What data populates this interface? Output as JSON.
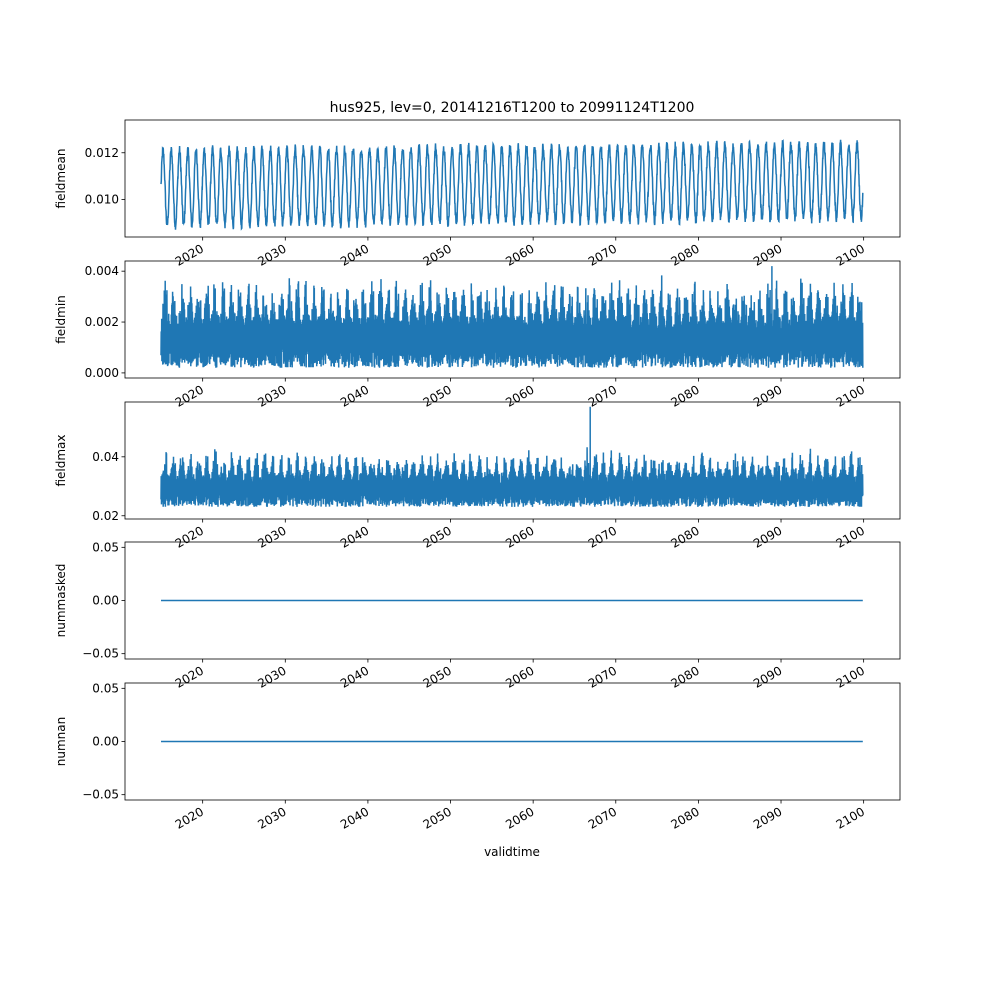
{
  "figure": {
    "title": "hus925, lev=0, 20141216T1200 to 20991124T1200",
    "xlabel": "validtime",
    "series_color": "#1f77b4"
  },
  "chart_data": [
    {
      "type": "line",
      "ylabel": "fieldmean",
      "xlim": [
        2010.6,
        2104.4
      ],
      "ylim": [
        0.0084,
        0.0134
      ],
      "yticks": [
        "0.010",
        "0.012"
      ],
      "ytick_values": [
        0.01,
        0.012
      ],
      "xticks": [
        "2020",
        "2030",
        "2040",
        "2050",
        "2060",
        "2070",
        "2080",
        "2090",
        "2100"
      ],
      "xtick_values": [
        2020,
        2030,
        2040,
        2050,
        2060,
        2070,
        2080,
        2090,
        2100
      ],
      "x_range": [
        2014.96,
        2099.9
      ],
      "pattern": "seasonal",
      "base": 0.0105,
      "amplitude": 0.0016,
      "trend": 0.0003,
      "noise": 0.0002
    },
    {
      "type": "line",
      "ylabel": "fieldmin",
      "xlim": [
        2010.6,
        2104.4
      ],
      "ylim": [
        -0.0002,
        0.0044
      ],
      "yticks": [
        "0.000",
        "0.002",
        "0.004"
      ],
      "ytick_values": [
        0.0,
        0.002,
        0.004
      ],
      "xticks": [
        "2020",
        "2030",
        "2040",
        "2050",
        "2060",
        "2070",
        "2080",
        "2090",
        "2100"
      ],
      "xtick_values": [
        2020,
        2030,
        2040,
        2050,
        2060,
        2070,
        2080,
        2090,
        2100
      ],
      "x_range": [
        2014.96,
        2099.9
      ],
      "pattern": "dense",
      "low": 0.0002,
      "high": 0.0033,
      "spike": {
        "x": 2088.9,
        "y": 0.0042
      }
    },
    {
      "type": "line",
      "ylabel": "fieldmax",
      "xlim": [
        2010.6,
        2104.4
      ],
      "ylim": [
        0.0189,
        0.0586
      ],
      "yticks": [
        "0.02",
        "0.04"
      ],
      "ytick_values": [
        0.02,
        0.04
      ],
      "xticks": [
        "2020",
        "2030",
        "2040",
        "2050",
        "2060",
        "2070",
        "2080",
        "2090",
        "2100"
      ],
      "xtick_values": [
        2020,
        2030,
        2040,
        2050,
        2060,
        2070,
        2080,
        2090,
        2100
      ],
      "x_range": [
        2014.96,
        2099.9
      ],
      "pattern": "dense",
      "low": 0.023,
      "high": 0.04,
      "spike": {
        "x": 2066.9,
        "y": 0.057
      }
    },
    {
      "type": "line",
      "ylabel": "nummasked",
      "xlim": [
        2010.6,
        2104.4
      ],
      "ylim": [
        -0.055,
        0.055
      ],
      "yticks": [
        "−0.05",
        "0.00",
        "0.05"
      ],
      "ytick_values": [
        -0.05,
        0.0,
        0.05
      ],
      "xticks": [
        "2020",
        "2030",
        "2040",
        "2050",
        "2060",
        "2070",
        "2080",
        "2090",
        "2100"
      ],
      "xtick_values": [
        2020,
        2030,
        2040,
        2050,
        2060,
        2070,
        2080,
        2090,
        2100
      ],
      "x_range": [
        2014.96,
        2099.9
      ],
      "pattern": "constant",
      "value": 0.0
    },
    {
      "type": "line",
      "ylabel": "numnan",
      "xlim": [
        2010.6,
        2104.4
      ],
      "ylim": [
        -0.055,
        0.055
      ],
      "yticks": [
        "−0.05",
        "0.00",
        "0.05"
      ],
      "ytick_values": [
        -0.05,
        0.0,
        0.05
      ],
      "xticks": [
        "2020",
        "2030",
        "2040",
        "2050",
        "2060",
        "2070",
        "2080",
        "2090",
        "2100"
      ],
      "xtick_values": [
        2020,
        2030,
        2040,
        2050,
        2060,
        2070,
        2080,
        2090,
        2100
      ],
      "x_range": [
        2014.96,
        2099.9
      ],
      "pattern": "constant",
      "value": 0.0
    }
  ]
}
